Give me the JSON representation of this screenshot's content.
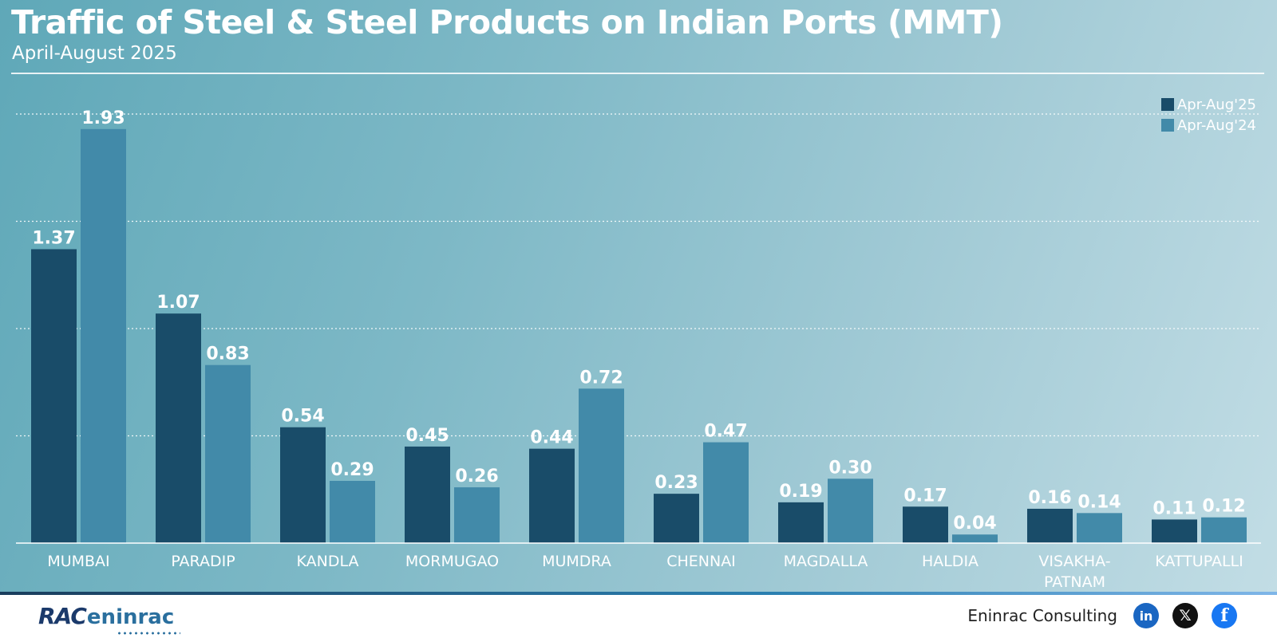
{
  "header": {
    "title": "Traffic of Steel & Steel Products on Indian Ports (MMT)",
    "subtitle": "April-August 2025"
  },
  "colors": {
    "series_2025": "#194c69",
    "series_2024": "#428aa9"
  },
  "chart_data": {
    "type": "bar",
    "title": "Traffic of Steel & Steel Products on Indian Ports (MMT)",
    "subtitle": "April-August 2025",
    "categories": [
      "MUMBAI",
      "PARADIP",
      "KANDLA",
      "MORMUGAO",
      "MUMDRA",
      "CHENNAI",
      "MAGDALLA",
      "HALDIA",
      "VISAKHA- PATNAM",
      "KATTUPALLI"
    ],
    "series": [
      {
        "name": "Apr-Aug'25",
        "values": [
          1.37,
          1.07,
          0.54,
          0.45,
          0.44,
          0.23,
          0.19,
          0.17,
          0.16,
          0.11
        ]
      },
      {
        "name": "Apr-Aug'24",
        "values": [
          1.93,
          0.83,
          0.29,
          0.26,
          0.72,
          0.47,
          0.3,
          0.04,
          0.14,
          0.12
        ]
      }
    ],
    "value_labels": {
      "s2025": [
        "1.37",
        "1.07",
        "0.54",
        "0.45",
        "0.44",
        "0.23",
        "0.19",
        "0.17",
        "0.16",
        "0.11"
      ],
      "s2024": [
        "1.93",
        "0.83",
        "0.29",
        "0.26",
        "0.72",
        "0.47",
        "0.30",
        "0.04",
        "0.14",
        "0.12"
      ]
    },
    "ylim": [
      0,
      2.0
    ],
    "grid": true,
    "legend_position": "top-right",
    "xlabel": "",
    "ylabel": ""
  },
  "footer": {
    "logo_rac": "RAC",
    "logo_eninrac": "eninrac",
    "brand": "Eninrac Consulting",
    "social": [
      {
        "name": "linkedin",
        "glyph": "in"
      },
      {
        "name": "x",
        "glyph": "𝕏"
      },
      {
        "name": "facebook",
        "glyph": "f"
      }
    ]
  }
}
